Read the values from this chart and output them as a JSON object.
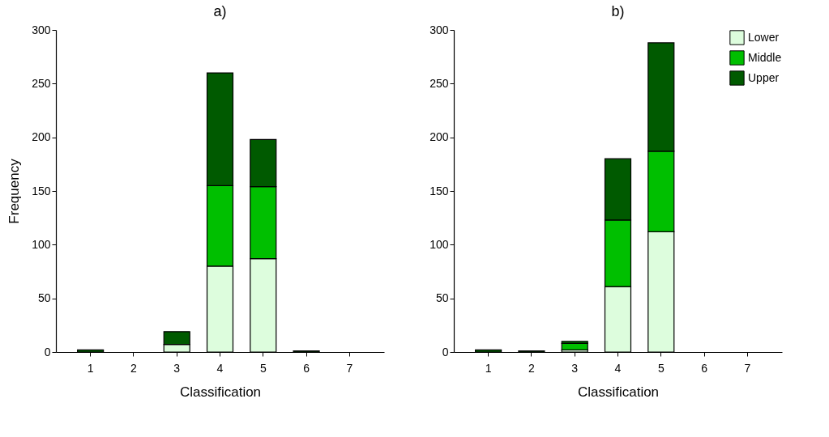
{
  "chart_data": [
    {
      "type": "bar",
      "title": "a)",
      "xlabel": "Classification",
      "ylabel": "Frequency",
      "categories": [
        "1",
        "2",
        "3",
        "4",
        "5",
        "6",
        "7"
      ],
      "stacked": true,
      "ylim": [
        0,
        300
      ],
      "yticks": [
        0,
        50,
        100,
        150,
        200,
        250,
        300
      ],
      "legend": false,
      "series": [
        {
          "color": "#ddfddd",
          "values": [
            0,
            0,
            7,
            80,
            87,
            0,
            0
          ]
        },
        {
          "color": "#00bf00",
          "values": [
            0,
            0,
            0,
            75,
            67,
            0,
            0
          ]
        },
        {
          "color": "#005a00",
          "values": [
            2,
            0,
            12,
            105,
            44,
            1,
            0
          ]
        }
      ]
    },
    {
      "type": "bar",
      "title": "b)",
      "xlabel": "Classification",
      "categories": [
        "1",
        "2",
        "3",
        "4",
        "5",
        "6",
        "7"
      ],
      "stacked": true,
      "ylim": [
        0,
        300
      ],
      "yticks": [
        0,
        50,
        100,
        150,
        200,
        250,
        300
      ],
      "legend": "top right",
      "series": [
        {
          "name": "Lower",
          "color": "#ddfddd",
          "values": [
            0,
            0,
            2,
            61,
            112,
            0,
            0
          ]
        },
        {
          "name": "Middle",
          "color": "#00bf00",
          "values": [
            0,
            0,
            6,
            62,
            75,
            0,
            0
          ]
        },
        {
          "name": "Upper",
          "color": "#005a00",
          "values": [
            2,
            1,
            2,
            57,
            101,
            0,
            0
          ]
        }
      ]
    }
  ]
}
